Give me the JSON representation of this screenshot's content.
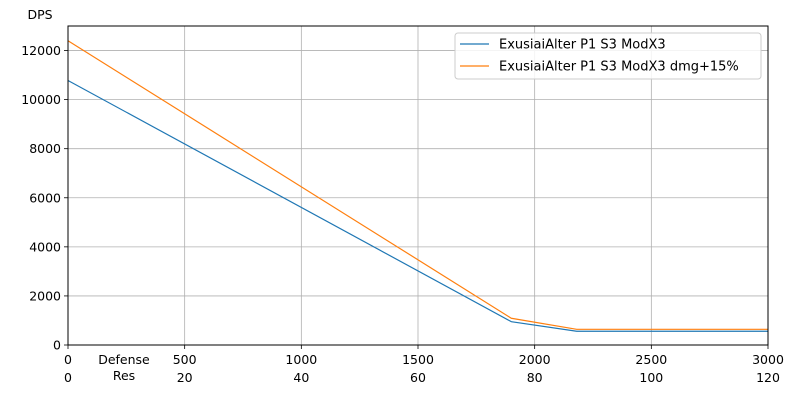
{
  "chart_data": {
    "type": "line",
    "ylabel": "DPS",
    "xlabel_defense": "Defense",
    "xlabel_res": "Res",
    "xlim": [
      0,
      3000
    ],
    "ylim": [
      0,
      13000
    ],
    "x_ticks": [
      0,
      500,
      1000,
      1500,
      2000,
      2500,
      3000
    ],
    "x_ticks_res": [
      0,
      20,
      40,
      60,
      80,
      100,
      120
    ],
    "y_ticks": [
      0,
      2000,
      4000,
      6000,
      8000,
      10000,
      12000
    ],
    "grid": true,
    "legend_position": "top-right",
    "series": [
      {
        "name": "ExusiaiAlter P1 S3 ModX3",
        "color": "#1f77b4",
        "points": [
          [
            0,
            10780
          ],
          [
            1900,
            950
          ],
          [
            2180,
            560
          ],
          [
            3000,
            560
          ]
        ]
      },
      {
        "name": "ExusiaiAlter P1 S3 ModX3 dmg+15%",
        "color": "#ff7f0e",
        "points": [
          [
            0,
            12400
          ],
          [
            1900,
            1090
          ],
          [
            2180,
            640
          ],
          [
            3000,
            640
          ]
        ]
      }
    ]
  }
}
